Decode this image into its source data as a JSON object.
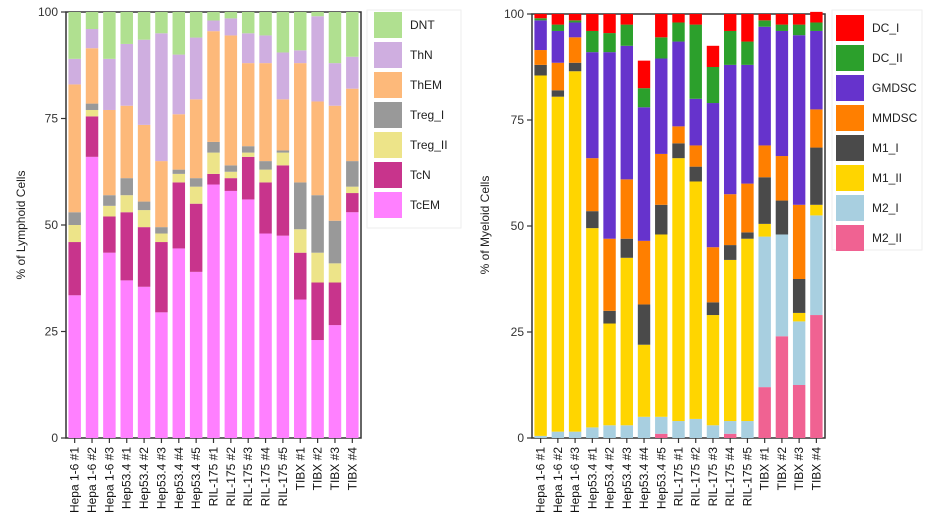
{
  "chart_data": [
    {
      "type": "bar",
      "stacked": true,
      "ylabel": "% of Lymphoid Cells",
      "ylim": [
        0,
        100
      ],
      "yticks": [
        0,
        25,
        50,
        75,
        100
      ],
      "legend_position": "right",
      "categories": [
        "Hepa 1-6 #1",
        "Hepa 1-6 #2",
        "Hepa 1-6 #3",
        "Hep53.4 #1",
        "Hep53.4 #2",
        "Hep53.4 #3",
        "Hep53.4 #4",
        "Hep53.4 #5",
        "RIL-175 #1",
        "RIL-175 #2",
        "RIL-175 #3",
        "RIL-175 #4",
        "RIL-175 #5",
        "TIBX #1",
        "TIBX #2",
        "TIBX #3",
        "TIBX #4"
      ],
      "series": [
        {
          "name": "TcEM",
          "color": "#ff80ff",
          "values": [
            33.5,
            66,
            43.5,
            37,
            35.5,
            29.5,
            44.5,
            39,
            59.5,
            58,
            56,
            48,
            47.5,
            32.5,
            23,
            26.5,
            53
          ]
        },
        {
          "name": "TcN",
          "color": "#c8348c",
          "values": [
            12.5,
            9.5,
            8.5,
            16,
            14,
            16.5,
            15.5,
            16,
            2.5,
            3,
            10,
            12,
            16.5,
            11,
            13.5,
            10,
            4.5
          ]
        },
        {
          "name": "Treg_II",
          "color": "#ede489",
          "values": [
            4,
            1.5,
            2.5,
            4,
            4,
            2,
            2,
            4,
            5,
            1.5,
            1,
            3,
            3,
            5.5,
            7,
            4.5,
            1.5
          ]
        },
        {
          "name": "Treg_I",
          "color": "#999999",
          "values": [
            3,
            1.5,
            2.5,
            4,
            2,
            1.5,
            1,
            2,
            2.5,
            1.5,
            1.5,
            2,
            0.5,
            11,
            13.5,
            10,
            6
          ]
        },
        {
          "name": "ThEM",
          "color": "#fdb97a",
          "values": [
            30,
            13,
            20,
            17,
            18,
            15.5,
            13,
            18.5,
            26,
            30.5,
            19.5,
            23,
            12,
            28,
            22,
            27,
            17
          ]
        },
        {
          "name": "ThN",
          "color": "#cfaee0",
          "values": [
            6,
            4.5,
            12,
            14.5,
            20,
            30,
            14,
            14.5,
            2.5,
            4,
            7,
            6.5,
            11,
            3,
            20,
            10,
            7.5
          ]
        },
        {
          "name": "DNT",
          "color": "#b0e090",
          "values": [
            11,
            4,
            11,
            7.5,
            6.5,
            5,
            10,
            6,
            2,
            1.5,
            5,
            5.5,
            9.5,
            9,
            1,
            12,
            10.5
          ]
        }
      ]
    },
    {
      "type": "bar",
      "stacked": true,
      "ylabel": "% of Myeloid Cells",
      "ylim": [
        0,
        100
      ],
      "yticks": [
        0,
        25,
        50,
        75,
        100
      ],
      "legend_position": "right",
      "categories": [
        "Hepa 1-6 #1",
        "Hepa 1-6 #2",
        "Hepa 1-6 #3",
        "Hep53.4 #1",
        "Hep53.4 #2",
        "Hep53.4 #3",
        "Hep53.4 #4",
        "Hep53.4 #5",
        "RIL-175 #1",
        "RIL-175 #2",
        "RIL-175 #3",
        "RIL-175 #4",
        "RIL-175 #5",
        "TIBX #1",
        "TIBX #2",
        "TIBX #3",
        "TIBX #4"
      ],
      "series": [
        {
          "name": "M2_II",
          "color": "#f06292",
          "values": [
            0,
            0,
            0,
            0,
            0,
            0,
            0,
            1,
            0,
            0,
            0,
            1,
            0,
            12,
            24,
            12.5,
            29
          ]
        },
        {
          "name": "M2_I",
          "color": "#a8cfe0",
          "values": [
            0.5,
            1.5,
            1.5,
            2.5,
            3,
            3,
            5,
            4,
            4,
            4.5,
            3,
            3,
            4,
            35.5,
            24,
            15,
            23.5
          ]
        },
        {
          "name": "M1_II",
          "color": "#ffd500",
          "values": [
            85,
            79,
            85,
            47,
            24,
            39.5,
            17,
            43,
            62,
            56,
            26,
            38,
            43,
            3,
            0,
            2,
            2.5
          ]
        },
        {
          "name": "M1_I",
          "color": "#4a4a4a",
          "values": [
            2.5,
            1.5,
            2,
            4,
            3,
            4.5,
            9.5,
            7,
            3.5,
            3.5,
            3,
            3.5,
            1.5,
            11,
            8,
            8,
            13.5
          ]
        },
        {
          "name": "MMDSC",
          "color": "#ff7f00",
          "values": [
            3.5,
            6.5,
            6,
            12.5,
            17,
            14,
            15,
            12,
            4,
            5,
            13,
            12,
            11.5,
            7.5,
            10.5,
            17.5,
            9
          ]
        },
        {
          "name": "GMDSC",
          "color": "#6633cc",
          "values": [
            7,
            7.5,
            3.5,
            25,
            44,
            31.5,
            31.5,
            22.5,
            20,
            11,
            34,
            30.5,
            28,
            28,
            29.5,
            40,
            18.5
          ]
        },
        {
          "name": "DC_II",
          "color": "#2ca02c",
          "values": [
            0.5,
            1.5,
            0.5,
            5,
            4.5,
            5,
            4.5,
            5,
            4.5,
            17.5,
            8.5,
            8,
            5.5,
            1.5,
            1.5,
            2.5,
            2
          ]
        },
        {
          "name": "DC_I",
          "color": "#ff0000",
          "values": [
            1,
            2.5,
            1.5,
            4,
            4.5,
            2.5,
            6.5,
            5.5,
            2,
            2.5,
            5,
            4,
            6.5,
            1.5,
            2.5,
            2.5,
            2.5
          ]
        }
      ]
    }
  ],
  "legends": [
    [
      "DNT",
      "ThN",
      "ThEM",
      "Treg_I",
      "Treg_II",
      "TcN",
      "TcEM"
    ],
    [
      "DC_I",
      "DC_II",
      "GMDSC",
      "MMDSC",
      "M1_I",
      "M1_II",
      "M2_I",
      "M2_II"
    ]
  ]
}
